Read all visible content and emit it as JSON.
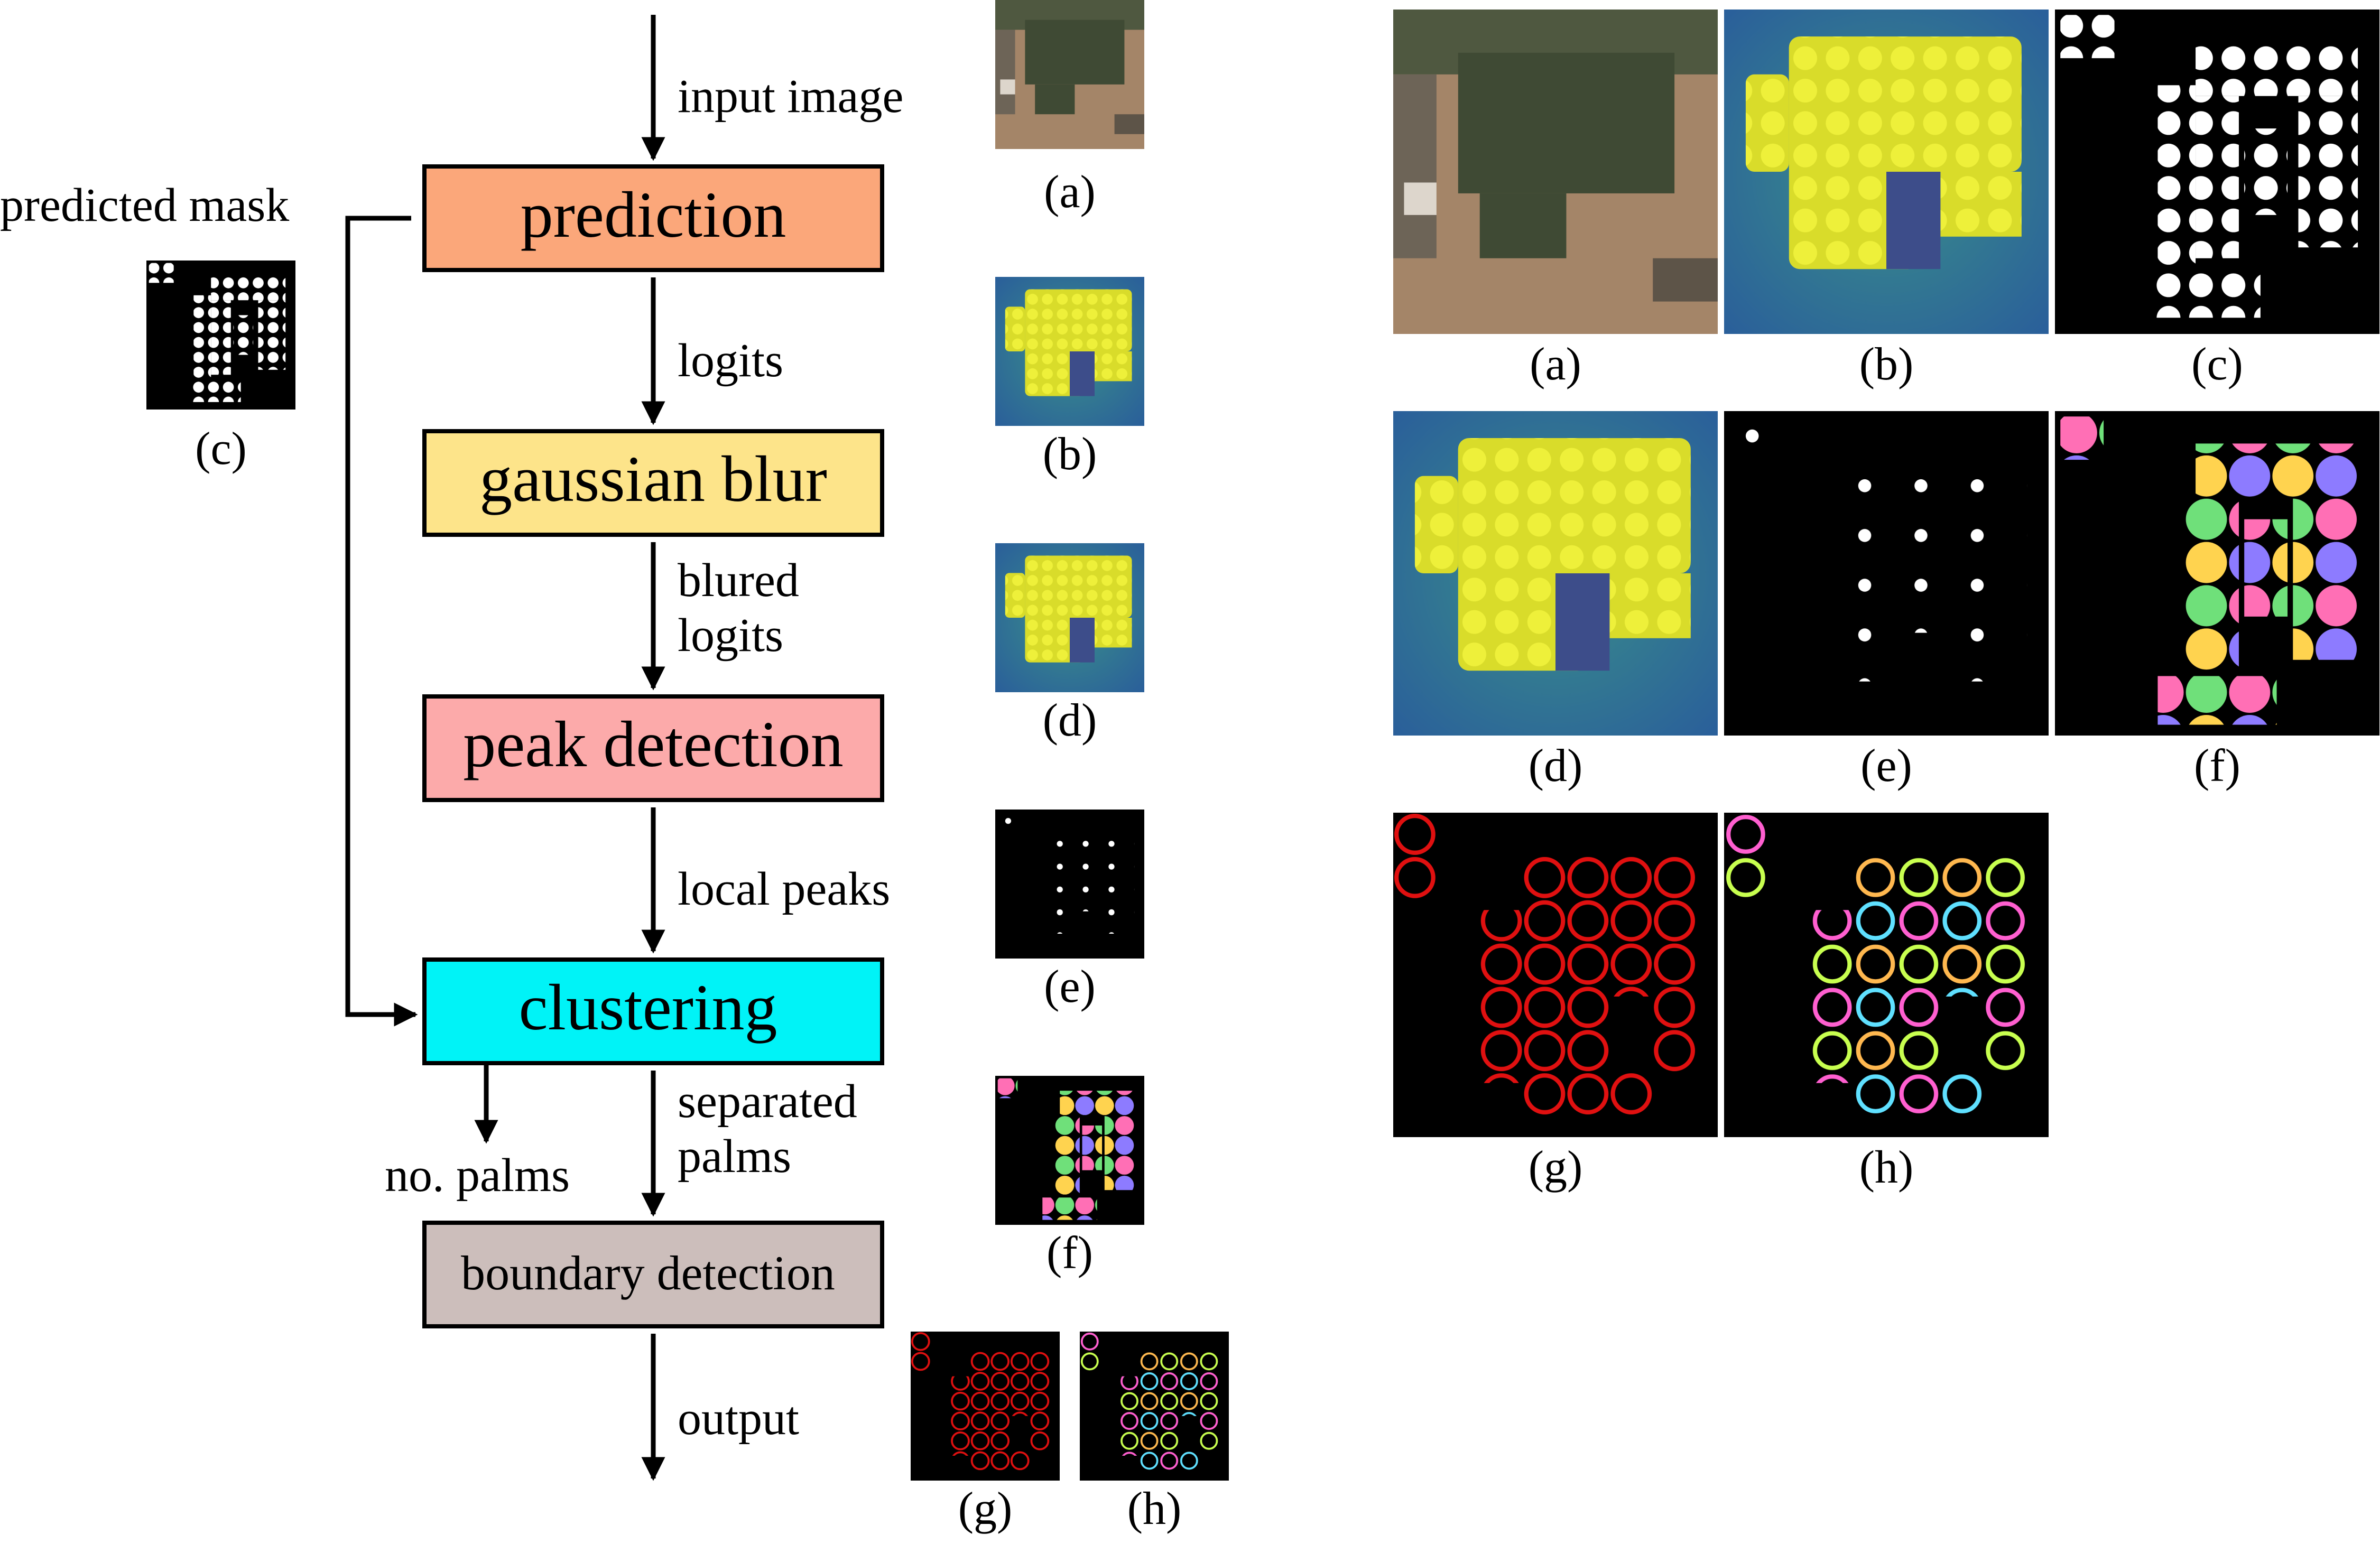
{
  "flow": {
    "nodes": {
      "prediction": "prediction",
      "gaussian_blur": "gaussian blur",
      "peak_detection": "peak detection",
      "clustering": "clustering",
      "boundary_detection": "boundary detection"
    },
    "edges": {
      "input_image": "input image",
      "logits": "logits",
      "blured_1": "blured",
      "blured_2": "logits",
      "local_peaks": "local peaks",
      "separated_1": "separated",
      "separated_2": "palms",
      "no_palms": "no. palms",
      "output": "output",
      "predicted_mask": "predicted mask"
    },
    "colors": {
      "prediction": "#fba77a",
      "gaussian_blur": "#fde48a",
      "peak_detection": "#fcaaaa",
      "clustering": "#00f3f7",
      "boundary_detection": "#ccbebb"
    }
  },
  "captions": {
    "a": "(a)",
    "b": "(b)",
    "c": "(c)",
    "d": "(d)",
    "e": "(e)",
    "f": "(f)",
    "g": "(g)",
    "h": "(h)"
  }
}
